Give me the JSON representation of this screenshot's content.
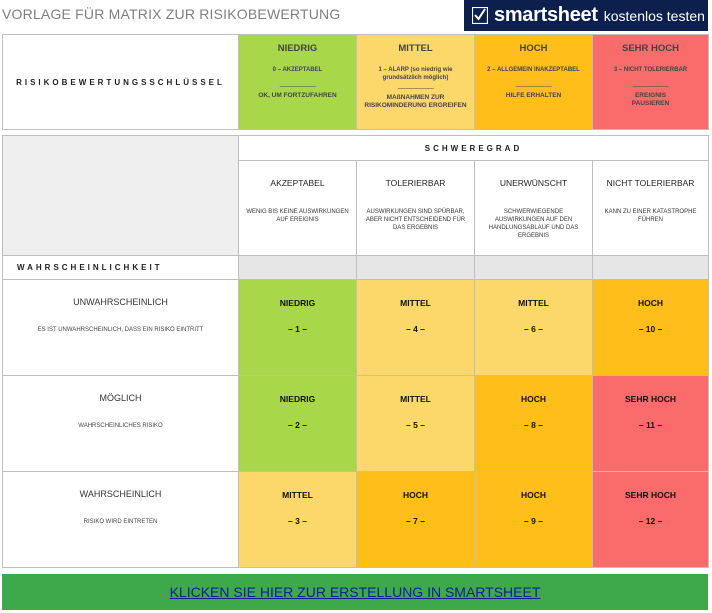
{
  "header": {
    "title": "VORLAGE FÜR MATRIX ZUR RISIKOBEWERTUNG",
    "brand_name": "smartsheet",
    "brand_tagline": "kostenlos testen",
    "colors": {
      "brand_bg": "#0d1f4c",
      "cta_bg": "#3da94a"
    }
  },
  "key": {
    "label": "RISIKOBEWERTUNGSSCHLÜSSEL",
    "levels": [
      {
        "name": "NIEDRIG",
        "desc": "0 – AKZEPTABEL",
        "dash": "------------------------",
        "action": "OK, UM FORTZUFAHREN",
        "color": "#a8d84a"
      },
      {
        "name": "MITTEL",
        "desc": "1 – ALARP (so niedrig wie grundsätzlich möglich)",
        "dash": "------------------------",
        "action": "MAßNAHMEN ZUR RISIKOMINDERUNG ERGREIFEN",
        "color": "#fcd76a"
      },
      {
        "name": "HOCH",
        "desc": "2 – ALLGEMEIN INAKZEPTABEL",
        "dash": "------------------------",
        "action": "HILFE ERHALTEN",
        "color": "#ffbe1a"
      },
      {
        "name": "SEHR HOCH",
        "desc": "3 – NICHT TOLERIERBAR",
        "dash": "------------------------",
        "action": "EREIGNIS PAUSIEREN",
        "color": "#fa6b6b"
      }
    ]
  },
  "matrix": {
    "severity_label": "SCHWEREGRAD",
    "likelihood_label": "WAHRSCHEINLICHKEIT",
    "severity": [
      {
        "name": "AKZEPTABEL",
        "desc": "WENIG BIS KEINE AUSWIRKUNGEN AUF EREIGNIS"
      },
      {
        "name": "TOLERIERBAR",
        "desc": "AUSWIRKUNGEN SIND SPÜRBAR, ABER NICHT ENTSCHEIDEND FÜR DAS ERGEBNIS"
      },
      {
        "name": "UNERWÜNSCHT",
        "desc": "SCHWERWIEGENDE AUSWIRKUNGEN AUF DEN HANDLUNGSABLAUF UND DAS ERGEBNIS"
      },
      {
        "name": "NICHT TOLERIERBAR",
        "desc": "KANN ZU EINER KATASTROPHE FÜHREN"
      }
    ],
    "rows": [
      {
        "name": "UNWAHRSCHEINLICH",
        "desc": "ES IST UNWAHRSCHEINLICH, DASS EIN RISIKO EINTRITT",
        "cells": [
          {
            "level": "NIEDRIG",
            "num": "– 1 –",
            "color": "green"
          },
          {
            "level": "MITTEL",
            "num": "– 4 –",
            "color": "yellow"
          },
          {
            "level": "MITTEL",
            "num": "– 6 –",
            "color": "yellow"
          },
          {
            "level": "HOCH",
            "num": "– 10 –",
            "color": "orange"
          }
        ]
      },
      {
        "name": "MÖGLICH",
        "desc": "WAHRSCHEINLICHES RISIKO",
        "cells": [
          {
            "level": "NIEDRIG",
            "num": "– 2 –",
            "color": "green"
          },
          {
            "level": "MITTEL",
            "num": "– 5 –",
            "color": "yellow"
          },
          {
            "level": "HOCH",
            "num": "– 8 –",
            "color": "orange"
          },
          {
            "level": "SEHR HOCH",
            "num": "– 11 –",
            "color": "red"
          }
        ]
      },
      {
        "name": "WAHRSCHEINLICH",
        "desc": "RISIKO WIRD EINTRETEN",
        "cells": [
          {
            "level": "MITTEL",
            "num": "– 3 –",
            "color": "yellow"
          },
          {
            "level": "HOCH",
            "num": "– 7 –",
            "color": "orange"
          },
          {
            "level": "HOCH",
            "num": "– 9 –",
            "color": "orange"
          },
          {
            "level": "SEHR HOCH",
            "num": "– 12 –",
            "color": "red"
          }
        ]
      }
    ]
  },
  "cta": {
    "label": "KLICKEN SIE HIER ZUR ERSTELLUNG IN SMARTSHEET"
  }
}
